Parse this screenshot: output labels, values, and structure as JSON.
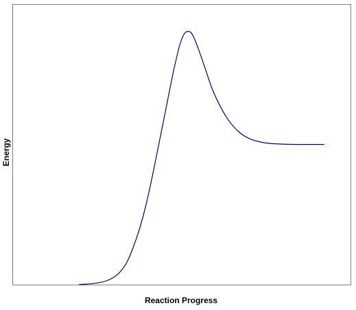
{
  "chart_data": {
    "type": "line",
    "title": "",
    "xlabel": "Reaction Progress",
    "ylabel": "Energy",
    "xlim": [
      0,
      100
    ],
    "ylim": [
      0,
      100
    ],
    "grid": false,
    "legend": "none",
    "series": [
      {
        "color": "#000080",
        "points": [
          [
            19.5,
            0.0
          ],
          [
            24.5,
            0.5
          ],
          [
            28.0,
            1.5
          ],
          [
            31.0,
            3.7
          ],
          [
            33.5,
            7.5
          ],
          [
            35.5,
            13.0
          ],
          [
            37.5,
            20.0
          ],
          [
            39.5,
            29.0
          ],
          [
            41.5,
            40.0
          ],
          [
            43.5,
            52.0
          ],
          [
            45.5,
            64.0
          ],
          [
            47.5,
            76.0
          ],
          [
            49.5,
            86.0
          ],
          [
            51.0,
            90.0
          ],
          [
            52.5,
            90.3
          ],
          [
            53.5,
            88.5
          ],
          [
            55.0,
            84.0
          ],
          [
            57.0,
            77.0
          ],
          [
            59.0,
            70.0
          ],
          [
            61.5,
            63.5
          ],
          [
            64.0,
            58.5
          ],
          [
            67.0,
            54.5
          ],
          [
            70.0,
            52.2
          ],
          [
            74.0,
            50.8
          ],
          [
            78.0,
            50.3
          ],
          [
            84.0,
            50.1
          ],
          [
            92.2,
            50.1
          ]
        ]
      }
    ]
  }
}
